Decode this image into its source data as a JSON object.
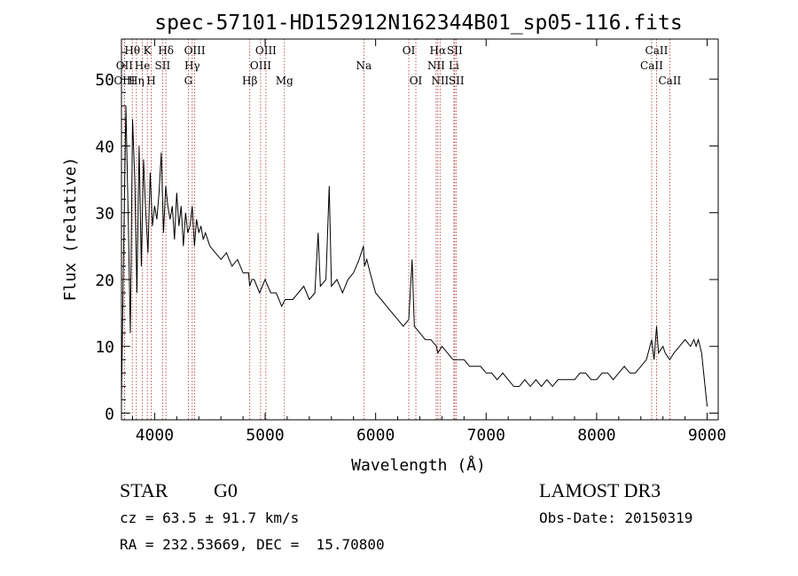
{
  "chart_data": {
    "type": "line",
    "title": "spec-57101-HD152912N162344B01_sp05-116.fits",
    "xlabel": "Wavelength (Å)",
    "ylabel": "Flux (relative)",
    "xlim": [
      3700,
      9100
    ],
    "ylim": [
      -1,
      56
    ],
    "xticks": [
      4000,
      5000,
      6000,
      7000,
      8000,
      9000
    ],
    "yticks": [
      0,
      10,
      20,
      30,
      40,
      50
    ],
    "series": [
      {
        "values_desc": "spectrum flux",
        "x": [
          3700,
          3720,
          3740,
          3760,
          3780,
          3800,
          3820,
          3840,
          3860,
          3880,
          3900,
          3920,
          3940,
          3960,
          3980,
          4000,
          4020,
          4040,
          4060,
          4080,
          4100,
          4120,
          4140,
          4160,
          4180,
          4200,
          4220,
          4240,
          4260,
          4280,
          4300,
          4320,
          4340,
          4360,
          4380,
          4400,
          4420,
          4440,
          4460,
          4480,
          4500,
          4550,
          4600,
          4650,
          4700,
          4750,
          4800,
          4850,
          4860,
          4880,
          4900,
          4950,
          5000,
          5050,
          5100,
          5150,
          5180,
          5200,
          5250,
          5300,
          5350,
          5400,
          5450,
          5480,
          5500,
          5550,
          5580,
          5600,
          5650,
          5700,
          5750,
          5800,
          5850,
          5890,
          5900,
          5920,
          5950,
          6000,
          6050,
          6100,
          6150,
          6200,
          6250,
          6300,
          6330,
          6350,
          6400,
          6450,
          6500,
          6550,
          6563,
          6600,
          6650,
          6700,
          6750,
          6800,
          6850,
          6900,
          6950,
          7000,
          7050,
          7100,
          7150,
          7200,
          7250,
          7300,
          7350,
          7400,
          7450,
          7500,
          7550,
          7600,
          7650,
          7700,
          7750,
          7800,
          7850,
          7900,
          7950,
          8000,
          8050,
          8100,
          8150,
          8200,
          8250,
          8300,
          8350,
          8400,
          8450,
          8498,
          8520,
          8542,
          8560,
          8600,
          8620,
          8662,
          8700,
          8750,
          8800,
          8850,
          8880,
          8900,
          8920,
          8950,
          9000
        ],
        "y": [
          2,
          25,
          46,
          30,
          12,
          44,
          35,
          18,
          40,
          22,
          38,
          30,
          24,
          36,
          28,
          31,
          29,
          33,
          39,
          27,
          34,
          31,
          29,
          31,
          26,
          33,
          28,
          31,
          25,
          30,
          27,
          28,
          31,
          25,
          29,
          27,
          28,
          26,
          27,
          26,
          25,
          24,
          23,
          24,
          22,
          23,
          21,
          21,
          19,
          20,
          20,
          18,
          20,
          18,
          18,
          16,
          17,
          17,
          17,
          18,
          19,
          17,
          18,
          27,
          19,
          20,
          34,
          19,
          20,
          18,
          20,
          21,
          23,
          25,
          22,
          23,
          21,
          18,
          17,
          16,
          15,
          14,
          13,
          14,
          23,
          13,
          12,
          11,
          11,
          10,
          9,
          10,
          9,
          8,
          8,
          8,
          7,
          7,
          7,
          6,
          6,
          5,
          6,
          5,
          4,
          4,
          5,
          4,
          5,
          4,
          5,
          4,
          5,
          5,
          5,
          5,
          6,
          6,
          5,
          5,
          6,
          6,
          5,
          6,
          7,
          6,
          6,
          7,
          8,
          11,
          8,
          13,
          9,
          10,
          9,
          8,
          9,
          10,
          11,
          10,
          11,
          10,
          11,
          9,
          1
        ]
      }
    ],
    "spectral_lines": [
      {
        "label": "Hθ",
        "x": 3798,
        "row": 1
      },
      {
        "label": "K",
        "x": 3934,
        "row": 1
      },
      {
        "label": "Hδ",
        "x": 4102,
        "row": 1
      },
      {
        "label": "OIII",
        "x": 4363,
        "row": 1
      },
      {
        "label": "OIII",
        "x": 5007,
        "row": 1
      },
      {
        "label": "OI",
        "x": 6300,
        "row": 1
      },
      {
        "label": "Hα",
        "x": 6563,
        "row": 1
      },
      {
        "label": "SII",
        "x": 6716,
        "row": 1
      },
      {
        "label": "CaII",
        "x": 8542,
        "row": 1
      },
      {
        "label": "OII",
        "x": 3727,
        "row": 2
      },
      {
        "label": "He",
        "x": 3889,
        "row": 2
      },
      {
        "label": "SII",
        "x": 4072,
        "row": 2
      },
      {
        "label": "Hγ",
        "x": 4340,
        "row": 2
      },
      {
        "label": "OIII",
        "x": 4959,
        "row": 2
      },
      {
        "label": "Na",
        "x": 5893,
        "row": 2
      },
      {
        "label": "NII",
        "x": 6548,
        "row": 2
      },
      {
        "label": "Li",
        "x": 6708,
        "row": 2
      },
      {
        "label": "CaII",
        "x": 8498,
        "row": 2
      },
      {
        "label": "OIII",
        "x": 3727,
        "row": 3
      },
      {
        "label": "Hη",
        "x": 3835,
        "row": 3
      },
      {
        "label": "H",
        "x": 3969,
        "row": 3
      },
      {
        "label": "G",
        "x": 4305,
        "row": 3
      },
      {
        "label": "Hβ",
        "x": 4861,
        "row": 3
      },
      {
        "label": "Mg",
        "x": 5175,
        "row": 3
      },
      {
        "label": "OI",
        "x": 6364,
        "row": 3
      },
      {
        "label": "NII",
        "x": 6583,
        "row": 3
      },
      {
        "label": "SII",
        "x": 6731,
        "row": 3
      },
      {
        "label": "CaII",
        "x": 8662,
        "row": 3
      }
    ],
    "line_color": "#000000",
    "marker_color": "#b03030"
  },
  "info": {
    "object_class": "STAR",
    "subclass": "G0",
    "survey": "LAMOST DR3",
    "redshift": "cz = 63.5 ± 91.7 km/s",
    "obs_date": "Obs-Date: 20150319",
    "coords": "RA = 232.53669, DEC =  15.70800"
  }
}
